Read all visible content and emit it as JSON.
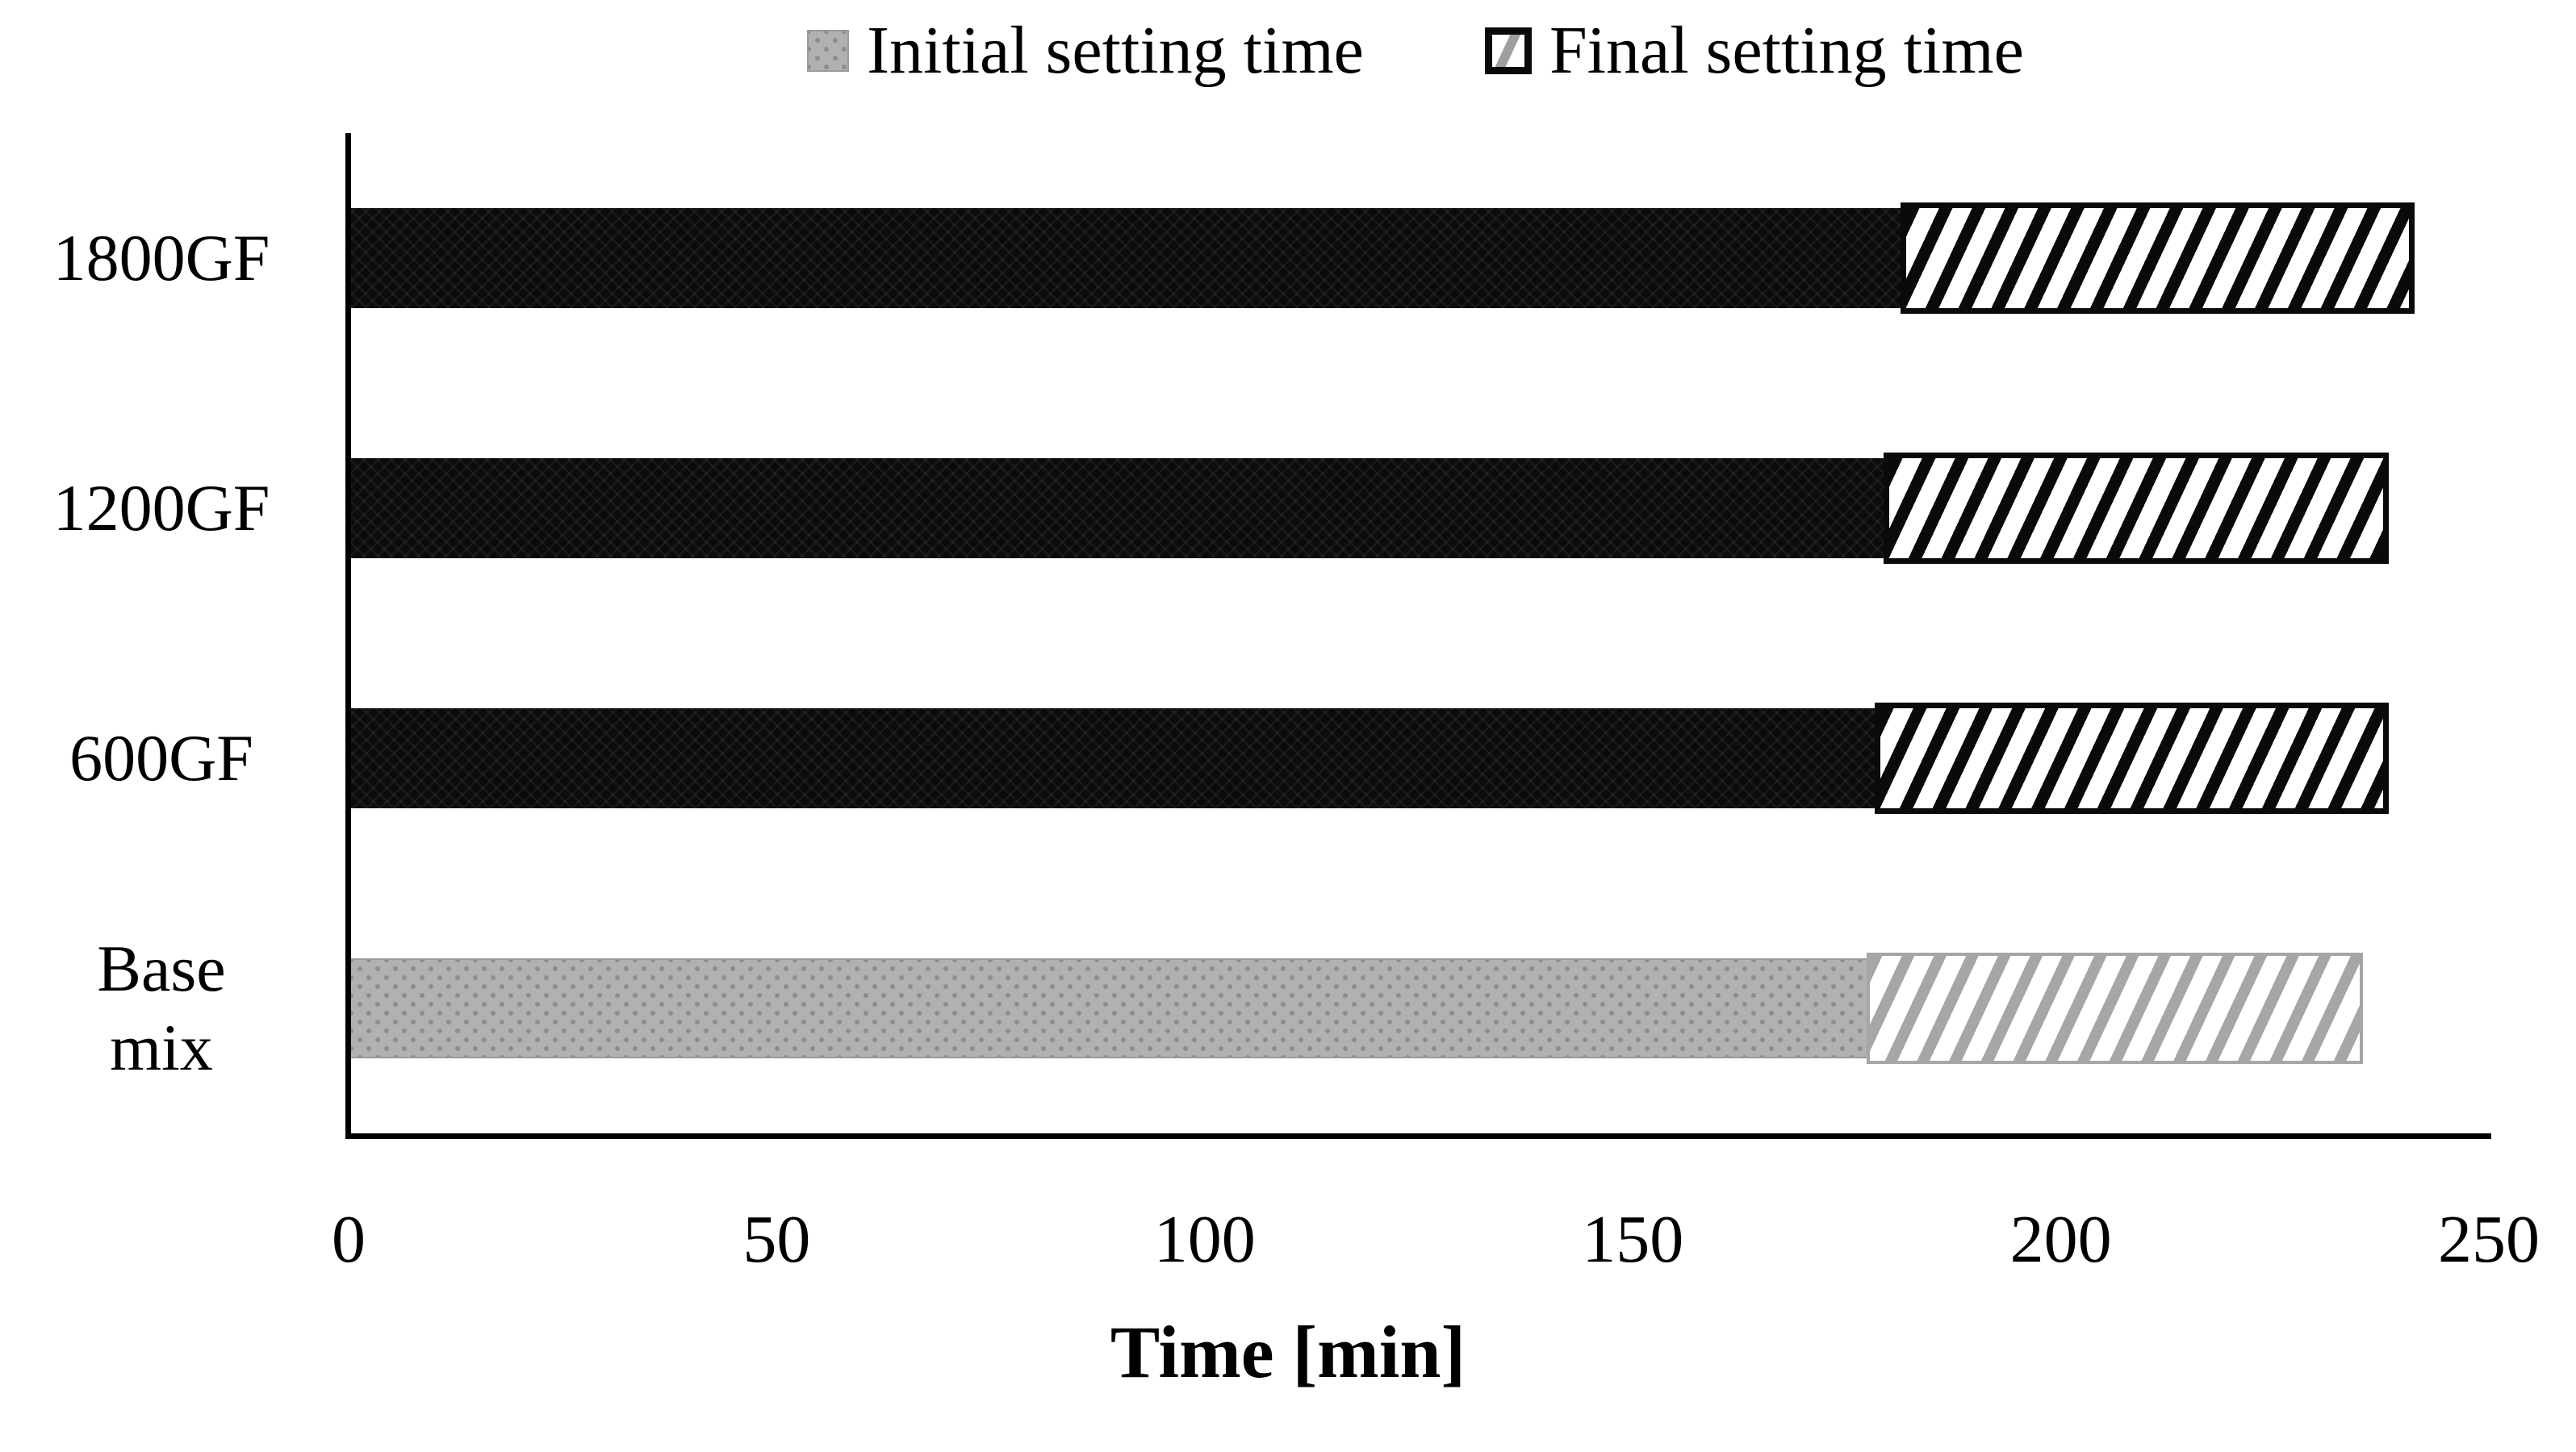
{
  "chart_data": {
    "type": "bar",
    "orientation": "horizontal-stacked",
    "title": "",
    "xlabel": "Time [min]",
    "ylabel": "",
    "xlim": [
      0,
      250
    ],
    "xticks": [
      0,
      50,
      100,
      150,
      200,
      250
    ],
    "grid": false,
    "legend_position": "top-center",
    "categories": [
      "1800GF",
      "1200GF",
      "600GF",
      "Base mix"
    ],
    "series": [
      {
        "name": "Initial setting time",
        "values": [
          181,
          179,
          178,
          177
        ]
      },
      {
        "name": "Final setting time",
        "values": [
          241,
          238,
          238,
          235
        ]
      }
    ],
    "series_note": "values in minutes; hatched Final-setting segment spans from the initial value to the final value",
    "bar_styles_initial": [
      "solid-black",
      "solid-black",
      "solid-black",
      "solid-gray"
    ],
    "bar_styles_final": [
      "hatch-black",
      "hatch-black",
      "hatch-black",
      "hatch-gray"
    ]
  },
  "legend": {
    "items": [
      {
        "label": "Initial setting time",
        "marker": "gray-dotted-square"
      },
      {
        "label": "Final setting time",
        "marker": "black-bordered-hatched-square"
      }
    ]
  },
  "colors": {
    "background": "#ffffff",
    "axis": "#000000",
    "text": "#000000",
    "bar_black": "#0b0b0b",
    "bar_gray": "#b1b1b1",
    "bar_gray_dot": "#8d8d8d",
    "hatch_black": "#0a0a0a",
    "hatch_gray": "#a6a6a6"
  }
}
